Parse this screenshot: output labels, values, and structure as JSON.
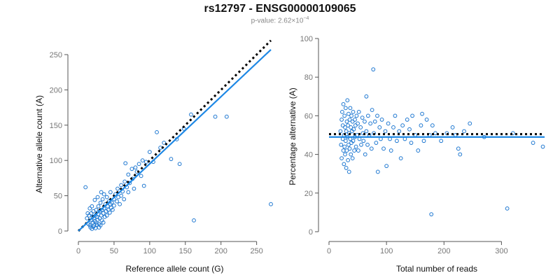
{
  "header": {
    "title": "rs12797 - ENSG00000109065",
    "pvalue_prefix": "p-value: 2.62×10",
    "pvalue_exponent": "−4"
  },
  "colors": {
    "points": "#1f78d1",
    "fit_line": "#1e88e5",
    "expected_line": "#000000",
    "axis": "#555555",
    "tick_text": "#777777"
  },
  "chart_data": [
    {
      "type": "scatter",
      "xlabel": "Reference allele count (G)",
      "ylabel": "Alternative allele count (A)",
      "xlim": [
        0,
        270
      ],
      "ylim": [
        0,
        250
      ],
      "xticks": [
        0,
        50,
        100,
        150,
        200,
        250
      ],
      "yticks": [
        0,
        50,
        100,
        150,
        200,
        250
      ],
      "fit_line": {
        "x": [
          0,
          270
        ],
        "y": [
          0,
          257
        ]
      },
      "expected_line": {
        "x": [
          0,
          270
        ],
        "y": [
          0,
          270
        ]
      },
      "points": [
        [
          10,
          62
        ],
        [
          14,
          10
        ],
        [
          15,
          22
        ],
        [
          16,
          8
        ],
        [
          18,
          15
        ],
        [
          18,
          25
        ],
        [
          20,
          12
        ],
        [
          20,
          20
        ],
        [
          21,
          28
        ],
        [
          22,
          18
        ],
        [
          22,
          8
        ],
        [
          23,
          14
        ],
        [
          24,
          22
        ],
        [
          25,
          30
        ],
        [
          25,
          12
        ],
        [
          26,
          20
        ],
        [
          27,
          16
        ],
        [
          28,
          24
        ],
        [
          28,
          35
        ],
        [
          29,
          10
        ],
        [
          30,
          28
        ],
        [
          30,
          18
        ],
        [
          31,
          40
        ],
        [
          32,
          22
        ],
        [
          33,
          30
        ],
        [
          33,
          15
        ],
        [
          34,
          45
        ],
        [
          35,
          25
        ],
        [
          36,
          32
        ],
        [
          36,
          52
        ],
        [
          37,
          20
        ],
        [
          38,
          38
        ],
        [
          39,
          28
        ],
        [
          40,
          48
        ],
        [
          40,
          22
        ],
        [
          41,
          35
        ],
        [
          42,
          30
        ],
        [
          43,
          42
        ],
        [
          44,
          26
        ],
        [
          45,
          55
        ],
        [
          45,
          38
        ],
        [
          46,
          33
        ],
        [
          47,
          40
        ],
        [
          48,
          30
        ],
        [
          50,
          45
        ],
        [
          50,
          36
        ],
        [
          52,
          52
        ],
        [
          54,
          42
        ],
        [
          55,
          60
        ],
        [
          56,
          48
        ],
        [
          58,
          38
        ],
        [
          60,
          65
        ],
        [
          60,
          50
        ],
        [
          62,
          56
        ],
        [
          64,
          45
        ],
        [
          65,
          70
        ],
        [
          66,
          96
        ],
        [
          68,
          62
        ],
        [
          70,
          80
        ],
        [
          70,
          55
        ],
        [
          72,
          68
        ],
        [
          75,
          88
        ],
        [
          76,
          74
        ],
        [
          78,
          60
        ],
        [
          80,
          90
        ],
        [
          82,
          84
        ],
        [
          85,
          95
        ],
        [
          88,
          78
        ],
        [
          90,
          100
        ],
        [
          92,
          64
        ],
        [
          95,
          98
        ],
        [
          100,
          112
        ],
        [
          105,
          98
        ],
        [
          110,
          140
        ],
        [
          115,
          118
        ],
        [
          120,
          125
        ],
        [
          130,
          102
        ],
        [
          138,
          130
        ],
        [
          142,
          95
        ],
        [
          148,
          145
        ],
        [
          158,
          165
        ],
        [
          162,
          15
        ],
        [
          192,
          162
        ],
        [
          208,
          162
        ],
        [
          270,
          38
        ],
        [
          17,
          5
        ],
        [
          19,
          3
        ],
        [
          21,
          6
        ],
        [
          24,
          4
        ],
        [
          26,
          9
        ],
        [
          29,
          5
        ],
        [
          31,
          8
        ],
        [
          35,
          12
        ],
        [
          12,
          18
        ],
        [
          13,
          25
        ],
        [
          16,
          32
        ],
        [
          19,
          35
        ],
        [
          23,
          44
        ],
        [
          27,
          48
        ],
        [
          32,
          55
        ]
      ]
    },
    {
      "type": "scatter",
      "xlabel": "Total number of reads",
      "ylabel": "Percentage alternative (A)",
      "xlim": [
        0,
        375
      ],
      "ylim": [
        0,
        100
      ],
      "xticks": [
        0,
        100,
        200,
        300
      ],
      "yticks": [
        0,
        20,
        40,
        60,
        80,
        100
      ],
      "fit_line": {
        "x": [
          0,
          375
        ],
        "y": [
          49,
          49
        ]
      },
      "expected_line": {
        "x": [
          0,
          375
        ],
        "y": [
          50.5,
          50.5
        ]
      },
      "points": [
        [
          20,
          52
        ],
        [
          21,
          45
        ],
        [
          22,
          58
        ],
        [
          22,
          38
        ],
        [
          23,
          62
        ],
        [
          24,
          48
        ],
        [
          24,
          55
        ],
        [
          25,
          42
        ],
        [
          25,
          66
        ],
        [
          26,
          50
        ],
        [
          26,
          35
        ],
        [
          27,
          60
        ],
        [
          27,
          44
        ],
        [
          28,
          54
        ],
        [
          28,
          40
        ],
        [
          29,
          64
        ],
        [
          29,
          47
        ],
        [
          30,
          52
        ],
        [
          30,
          33
        ],
        [
          31,
          57
        ],
        [
          31,
          42
        ],
        [
          32,
          68
        ],
        [
          32,
          49
        ],
        [
          33,
          55
        ],
        [
          33,
          37
        ],
        [
          34,
          61
        ],
        [
          34,
          45
        ],
        [
          35,
          51
        ],
        [
          35,
          31
        ],
        [
          36,
          58
        ],
        [
          36,
          43
        ],
        [
          37,
          64
        ],
        [
          37,
          48
        ],
        [
          38,
          54
        ],
        [
          38,
          40
        ],
        [
          39,
          60
        ],
        [
          39,
          46
        ],
        [
          40,
          52
        ],
        [
          41,
          57
        ],
        [
          41,
          38
        ],
        [
          42,
          62
        ],
        [
          42,
          47
        ],
        [
          43,
          53
        ],
        [
          44,
          42
        ],
        [
          45,
          58
        ],
        [
          45,
          49
        ],
        [
          46,
          55
        ],
        [
          47,
          44
        ],
        [
          48,
          60
        ],
        [
          49,
          50
        ],
        [
          50,
          56
        ],
        [
          51,
          42
        ],
        [
          52,
          62
        ],
        [
          53,
          48
        ],
        [
          55,
          54
        ],
        [
          56,
          45
        ],
        [
          58,
          59
        ],
        [
          59,
          51
        ],
        [
          60,
          47
        ],
        [
          62,
          57
        ],
        [
          63,
          40
        ],
        [
          65,
          70
        ],
        [
          65,
          52
        ],
        [
          67,
          45
        ],
        [
          68,
          60
        ],
        [
          70,
          50
        ],
        [
          72,
          56
        ],
        [
          74,
          43
        ],
        [
          75,
          63
        ],
        [
          77,
          84
        ],
        [
          78,
          51
        ],
        [
          80,
          57
        ],
        [
          82,
          46
        ],
        [
          84,
          60
        ],
        [
          85,
          31
        ],
        [
          88,
          54
        ],
        [
          90,
          48
        ],
        [
          92,
          58
        ],
        [
          95,
          43
        ],
        [
          98,
          52
        ],
        [
          100,
          34
        ],
        [
          103,
          56
        ],
        [
          106,
          48
        ],
        [
          108,
          42
        ],
        [
          112,
          54
        ],
        [
          115,
          60
        ],
        [
          118,
          47
        ],
        [
          122,
          52
        ],
        [
          125,
          38
        ],
        [
          128,
          55
        ],
        [
          132,
          48
        ],
        [
          136,
          58
        ],
        [
          140,
          53
        ],
        [
          143,
          46
        ],
        [
          145,
          60
        ],
        [
          150,
          50
        ],
        [
          155,
          42
        ],
        [
          160,
          55
        ],
        [
          162,
          61
        ],
        [
          165,
          47
        ],
        [
          170,
          58
        ],
        [
          175,
          50
        ],
        [
          178,
          9
        ],
        [
          180,
          55
        ],
        [
          185,
          51
        ],
        [
          195,
          47
        ],
        [
          205,
          51
        ],
        [
          215,
          54
        ],
        [
          220,
          50
        ],
        [
          225,
          43
        ],
        [
          228,
          40
        ],
        [
          235,
          52
        ],
        [
          245,
          56
        ],
        [
          270,
          49
        ],
        [
          310,
          12
        ],
        [
          320,
          51
        ],
        [
          355,
          46
        ],
        [
          372,
          44
        ]
      ]
    }
  ]
}
